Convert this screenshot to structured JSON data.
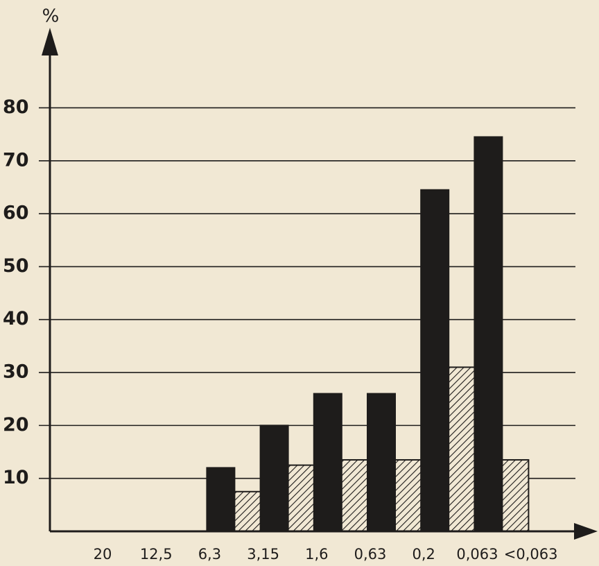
{
  "chart_data": {
    "type": "bar",
    "ylabel": "%",
    "categories": [
      "20",
      "12,5",
      "6,3",
      "3,15",
      "1,6",
      "0,63",
      "0,2",
      "0,063",
      "<0,063"
    ],
    "series": [
      {
        "color": "#1e1c1b",
        "hatch": false,
        "values": [
          null,
          null,
          12,
          20,
          26,
          26,
          64.5,
          74.5,
          null
        ]
      },
      {
        "color": "#1e1c1b",
        "hatch": true,
        "values": [
          null,
          null,
          7.5,
          12.5,
          13.5,
          13.5,
          31,
          13.5,
          null
        ]
      }
    ],
    "ylim": [
      0,
      95
    ],
    "yticks": [
      10,
      20,
      30,
      40,
      50,
      60,
      70,
      80
    ],
    "grid": true
  }
}
